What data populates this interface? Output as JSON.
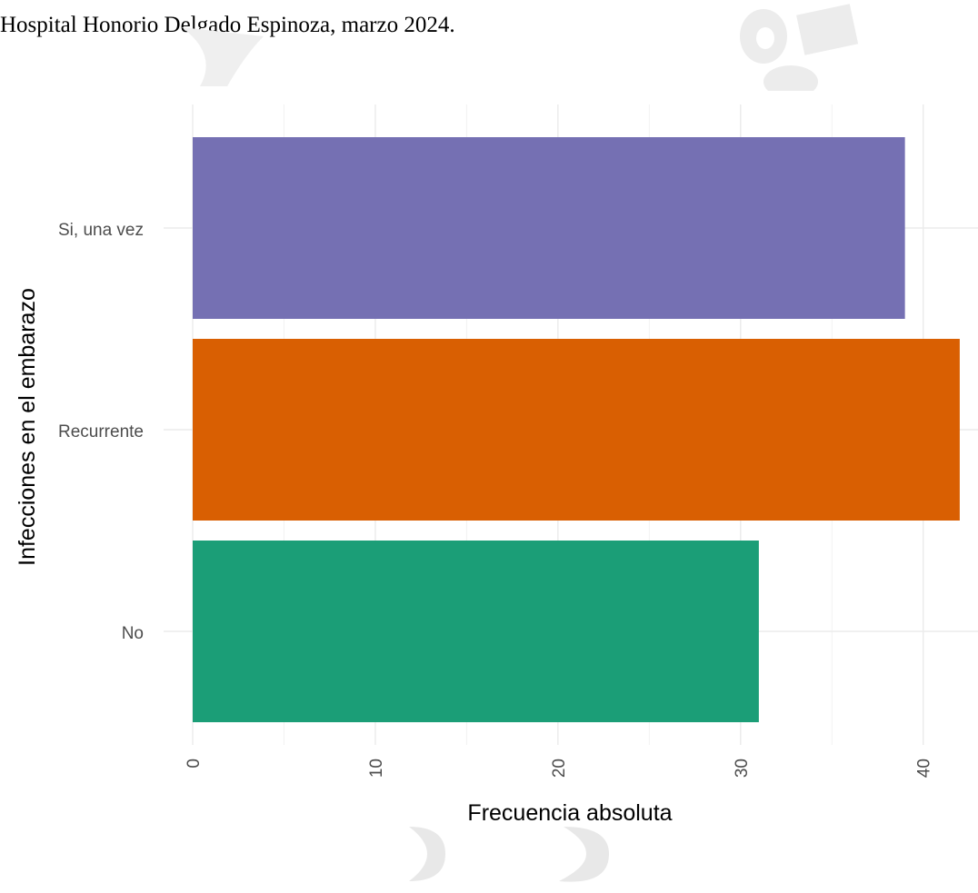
{
  "document": {
    "caption_line": "Hospital Honorio Delgado Espinoza, marzo 2024."
  },
  "chart_data": {
    "type": "bar",
    "orientation": "horizontal",
    "categories": [
      "No",
      "Recurrente",
      "Si, una vez"
    ],
    "values": [
      31,
      42,
      39
    ],
    "colors": [
      "#1b9e77",
      "#d95f02",
      "#7570b3"
    ],
    "xlabel": "Frecuencia absoluta",
    "ylabel": "Infecciones en el embarazo",
    "xlim": [
      0,
      43
    ],
    "xticks": [
      0,
      10,
      20,
      30,
      40
    ],
    "grid": true,
    "legend": "none"
  }
}
